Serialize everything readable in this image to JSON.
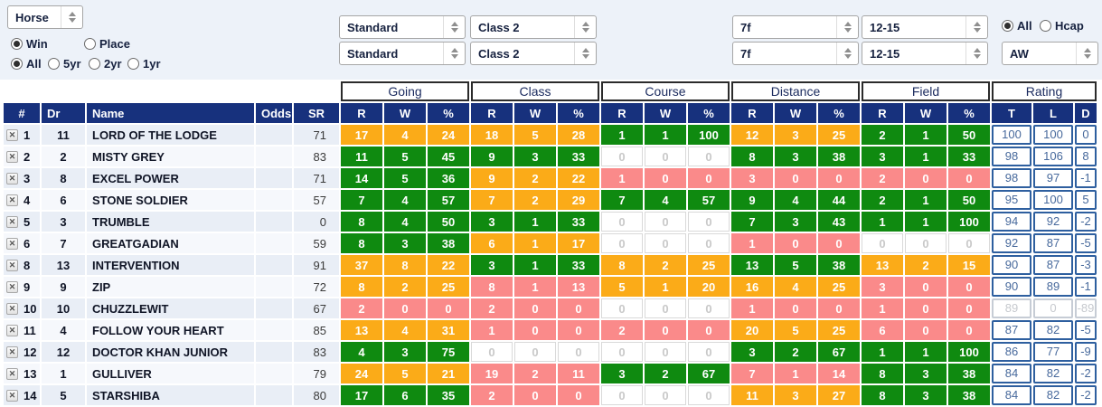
{
  "filters": {
    "entity": "Horse",
    "bet_type": {
      "selected": "Win",
      "options": [
        "Win",
        "Place"
      ]
    },
    "age": {
      "selected": "All",
      "options": [
        "All",
        "5yr",
        "2yr",
        "1yr"
      ]
    },
    "going_top": "Standard",
    "class_top": "Class 2",
    "distance_top": "7f",
    "field_top": "12-15",
    "going_bottom": "Standard",
    "class_bottom": "Class 2",
    "distance_bottom": "7f",
    "field_bottom": "12-15",
    "race_type": {
      "selected": "All",
      "options": [
        "All",
        "Hcap"
      ]
    },
    "surface": "AW"
  },
  "table": {
    "groups": [
      "Going",
      "Class",
      "Course",
      "Distance",
      "Field",
      "Rating"
    ],
    "left_columns": [
      "#",
      "Dr",
      "Name",
      "Odds",
      "SR"
    ],
    "stat_columns": [
      "R",
      "W",
      "%"
    ],
    "rating_columns": [
      "T",
      "L",
      "D"
    ],
    "rows": [
      {
        "num": "1",
        "dr": "11",
        "name": "LORD OF THE LODGE",
        "odds": "",
        "sr": "71",
        "stats": [
          {
            "r": "17",
            "w": "4",
            "p": "24",
            "c": "orange"
          },
          {
            "r": "18",
            "w": "5",
            "p": "28",
            "c": "orange"
          },
          {
            "r": "1",
            "w": "1",
            "p": "100",
            "c": "green"
          },
          {
            "r": "12",
            "w": "3",
            "p": "25",
            "c": "orange"
          },
          {
            "r": "2",
            "w": "1",
            "p": "50",
            "c": "green"
          }
        ],
        "rating": {
          "t": "100",
          "l": "100",
          "d": "0",
          "muted": false
        }
      },
      {
        "num": "2",
        "dr": "2",
        "name": "MISTY GREY",
        "odds": "",
        "sr": "83",
        "stats": [
          {
            "r": "11",
            "w": "5",
            "p": "45",
            "c": "green"
          },
          {
            "r": "9",
            "w": "3",
            "p": "33",
            "c": "green"
          },
          {
            "r": "0",
            "w": "0",
            "p": "0",
            "c": "none"
          },
          {
            "r": "8",
            "w": "3",
            "p": "38",
            "c": "green"
          },
          {
            "r": "3",
            "w": "1",
            "p": "33",
            "c": "green"
          }
        ],
        "rating": {
          "t": "98",
          "l": "106",
          "d": "8",
          "muted": false
        }
      },
      {
        "num": "3",
        "dr": "8",
        "name": "EXCEL POWER",
        "odds": "",
        "sr": "71",
        "stats": [
          {
            "r": "14",
            "w": "5",
            "p": "36",
            "c": "green"
          },
          {
            "r": "9",
            "w": "2",
            "p": "22",
            "c": "orange"
          },
          {
            "r": "1",
            "w": "0",
            "p": "0",
            "c": "pink"
          },
          {
            "r": "3",
            "w": "0",
            "p": "0",
            "c": "pink"
          },
          {
            "r": "2",
            "w": "0",
            "p": "0",
            "c": "pink"
          }
        ],
        "rating": {
          "t": "98",
          "l": "97",
          "d": "-1",
          "muted": false
        }
      },
      {
        "num": "4",
        "dr": "6",
        "name": "STONE SOLDIER",
        "odds": "",
        "sr": "57",
        "stats": [
          {
            "r": "7",
            "w": "4",
            "p": "57",
            "c": "green"
          },
          {
            "r": "7",
            "w": "2",
            "p": "29",
            "c": "orange"
          },
          {
            "r": "7",
            "w": "4",
            "p": "57",
            "c": "green"
          },
          {
            "r": "9",
            "w": "4",
            "p": "44",
            "c": "green"
          },
          {
            "r": "2",
            "w": "1",
            "p": "50",
            "c": "green"
          }
        ],
        "rating": {
          "t": "95",
          "l": "100",
          "d": "5",
          "muted": false
        }
      },
      {
        "num": "5",
        "dr": "3",
        "name": "TRUMBLE",
        "odds": "",
        "sr": "0",
        "stats": [
          {
            "r": "8",
            "w": "4",
            "p": "50",
            "c": "green"
          },
          {
            "r": "3",
            "w": "1",
            "p": "33",
            "c": "green"
          },
          {
            "r": "0",
            "w": "0",
            "p": "0",
            "c": "none"
          },
          {
            "r": "7",
            "w": "3",
            "p": "43",
            "c": "green"
          },
          {
            "r": "1",
            "w": "1",
            "p": "100",
            "c": "green"
          }
        ],
        "rating": {
          "t": "94",
          "l": "92",
          "d": "-2",
          "muted": false
        }
      },
      {
        "num": "6",
        "dr": "7",
        "name": "GREATGADIAN",
        "odds": "",
        "sr": "59",
        "stats": [
          {
            "r": "8",
            "w": "3",
            "p": "38",
            "c": "green"
          },
          {
            "r": "6",
            "w": "1",
            "p": "17",
            "c": "orange"
          },
          {
            "r": "0",
            "w": "0",
            "p": "0",
            "c": "none"
          },
          {
            "r": "1",
            "w": "0",
            "p": "0",
            "c": "pink"
          },
          {
            "r": "0",
            "w": "0",
            "p": "0",
            "c": "none"
          }
        ],
        "rating": {
          "t": "92",
          "l": "87",
          "d": "-5",
          "muted": false
        }
      },
      {
        "num": "8",
        "dr": "13",
        "name": "INTERVENTION",
        "odds": "",
        "sr": "91",
        "stats": [
          {
            "r": "37",
            "w": "8",
            "p": "22",
            "c": "orange"
          },
          {
            "r": "3",
            "w": "1",
            "p": "33",
            "c": "green"
          },
          {
            "r": "8",
            "w": "2",
            "p": "25",
            "c": "orange"
          },
          {
            "r": "13",
            "w": "5",
            "p": "38",
            "c": "green"
          },
          {
            "r": "13",
            "w": "2",
            "p": "15",
            "c": "orange"
          }
        ],
        "rating": {
          "t": "90",
          "l": "87",
          "d": "-3",
          "muted": false
        }
      },
      {
        "num": "9",
        "dr": "9",
        "name": "ZIP",
        "odds": "",
        "sr": "72",
        "stats": [
          {
            "r": "8",
            "w": "2",
            "p": "25",
            "c": "orange"
          },
          {
            "r": "8",
            "w": "1",
            "p": "13",
            "c": "pink"
          },
          {
            "r": "5",
            "w": "1",
            "p": "20",
            "c": "orange"
          },
          {
            "r": "16",
            "w": "4",
            "p": "25",
            "c": "orange"
          },
          {
            "r": "3",
            "w": "0",
            "p": "0",
            "c": "pink"
          }
        ],
        "rating": {
          "t": "90",
          "l": "89",
          "d": "-1",
          "muted": false
        }
      },
      {
        "num": "10",
        "dr": "10",
        "name": "CHUZZLEWIT",
        "odds": "",
        "sr": "67",
        "stats": [
          {
            "r": "2",
            "w": "0",
            "p": "0",
            "c": "pink"
          },
          {
            "r": "2",
            "w": "0",
            "p": "0",
            "c": "pink"
          },
          {
            "r": "0",
            "w": "0",
            "p": "0",
            "c": "none"
          },
          {
            "r": "1",
            "w": "0",
            "p": "0",
            "c": "pink"
          },
          {
            "r": "1",
            "w": "0",
            "p": "0",
            "c": "pink"
          }
        ],
        "rating": {
          "t": "89",
          "l": "0",
          "d": "-89",
          "muted": true
        }
      },
      {
        "num": "11",
        "dr": "4",
        "name": "FOLLOW YOUR HEART",
        "odds": "",
        "sr": "85",
        "stats": [
          {
            "r": "13",
            "w": "4",
            "p": "31",
            "c": "orange"
          },
          {
            "r": "1",
            "w": "0",
            "p": "0",
            "c": "pink"
          },
          {
            "r": "2",
            "w": "0",
            "p": "0",
            "c": "pink"
          },
          {
            "r": "20",
            "w": "5",
            "p": "25",
            "c": "orange"
          },
          {
            "r": "6",
            "w": "0",
            "p": "0",
            "c": "pink"
          }
        ],
        "rating": {
          "t": "87",
          "l": "82",
          "d": "-5",
          "muted": false
        }
      },
      {
        "num": "12",
        "dr": "12",
        "name": "DOCTOR KHAN JUNIOR",
        "odds": "",
        "sr": "83",
        "stats": [
          {
            "r": "4",
            "w": "3",
            "p": "75",
            "c": "green"
          },
          {
            "r": "0",
            "w": "0",
            "p": "0",
            "c": "none"
          },
          {
            "r": "0",
            "w": "0",
            "p": "0",
            "c": "none"
          },
          {
            "r": "3",
            "w": "2",
            "p": "67",
            "c": "green"
          },
          {
            "r": "1",
            "w": "1",
            "p": "100",
            "c": "green"
          }
        ],
        "rating": {
          "t": "86",
          "l": "77",
          "d": "-9",
          "muted": false
        }
      },
      {
        "num": "13",
        "dr": "1",
        "name": "GULLIVER",
        "odds": "",
        "sr": "79",
        "stats": [
          {
            "r": "24",
            "w": "5",
            "p": "21",
            "c": "orange"
          },
          {
            "r": "19",
            "w": "2",
            "p": "11",
            "c": "pink"
          },
          {
            "r": "3",
            "w": "2",
            "p": "67",
            "c": "green"
          },
          {
            "r": "7",
            "w": "1",
            "p": "14",
            "c": "pink"
          },
          {
            "r": "8",
            "w": "3",
            "p": "38",
            "c": "green"
          }
        ],
        "rating": {
          "t": "84",
          "l": "82",
          "d": "-2",
          "muted": false
        }
      },
      {
        "num": "14",
        "dr": "5",
        "name": "STARSHIBA",
        "odds": "",
        "sr": "80",
        "stats": [
          {
            "r": "17",
            "w": "6",
            "p": "35",
            "c": "green"
          },
          {
            "r": "2",
            "w": "0",
            "p": "0",
            "c": "pink"
          },
          {
            "r": "0",
            "w": "0",
            "p": "0",
            "c": "none"
          },
          {
            "r": "11",
            "w": "3",
            "p": "27",
            "c": "orange"
          },
          {
            "r": "8",
            "w": "3",
            "p": "38",
            "c": "green"
          }
        ],
        "rating": {
          "t": "84",
          "l": "82",
          "d": "-2",
          "muted": false
        }
      }
    ]
  },
  "colors": {
    "header_navy": "#17317D",
    "stat_green": "#0f8a10",
    "stat_orange": "#fbab18",
    "stat_pink": "#fa8a8a",
    "rating_border": "#2e5f9f",
    "rating_text": "#47699c",
    "filter_bg": "#edf2f9"
  }
}
